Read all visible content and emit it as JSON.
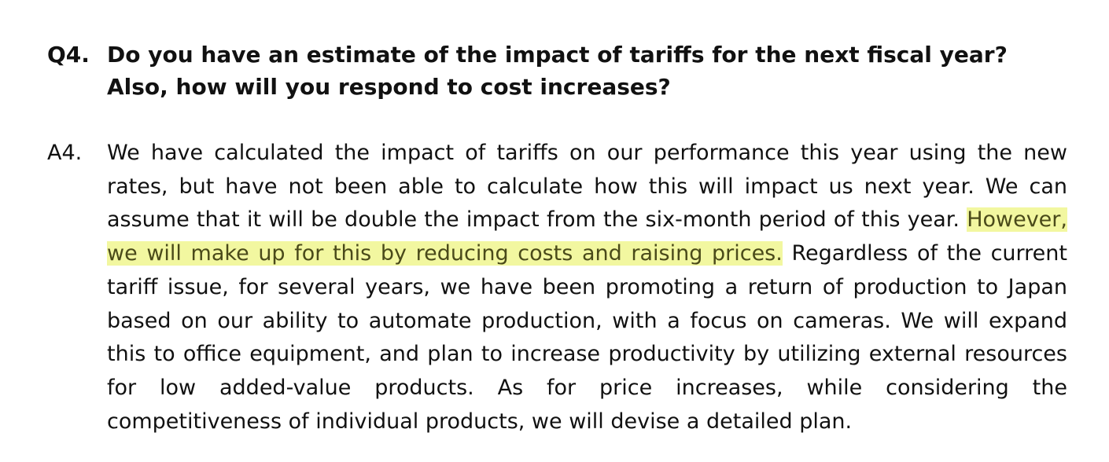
{
  "question": {
    "label": "Q4.",
    "text": "Do you have an estimate of the impact of tariffs for the next fiscal year? Also, how will you respond to cost increases?"
  },
  "answer": {
    "label": "A4.",
    "text_before": "We have calculated the impact of tariffs on our performance this year using the new rates, but have not been able to calculate how this will impact us next year. We can assume that it will be double the impact from the six-month period of this year.",
    "highlighted": "However, we will make up for this by reducing costs and raising prices.",
    "text_after": "Regardless of the current tariff issue, for several years, we have been promoting a return of production to Japan based on our ability to automate production, with a focus on cameras. We will expand this to office equipment, and plan to increase productivity by utilizing external resources for low added-value products. As for price increases, while considering the competitiveness of individual products, we will devise a detailed plan."
  },
  "highlight_color": "#f2f7a0"
}
